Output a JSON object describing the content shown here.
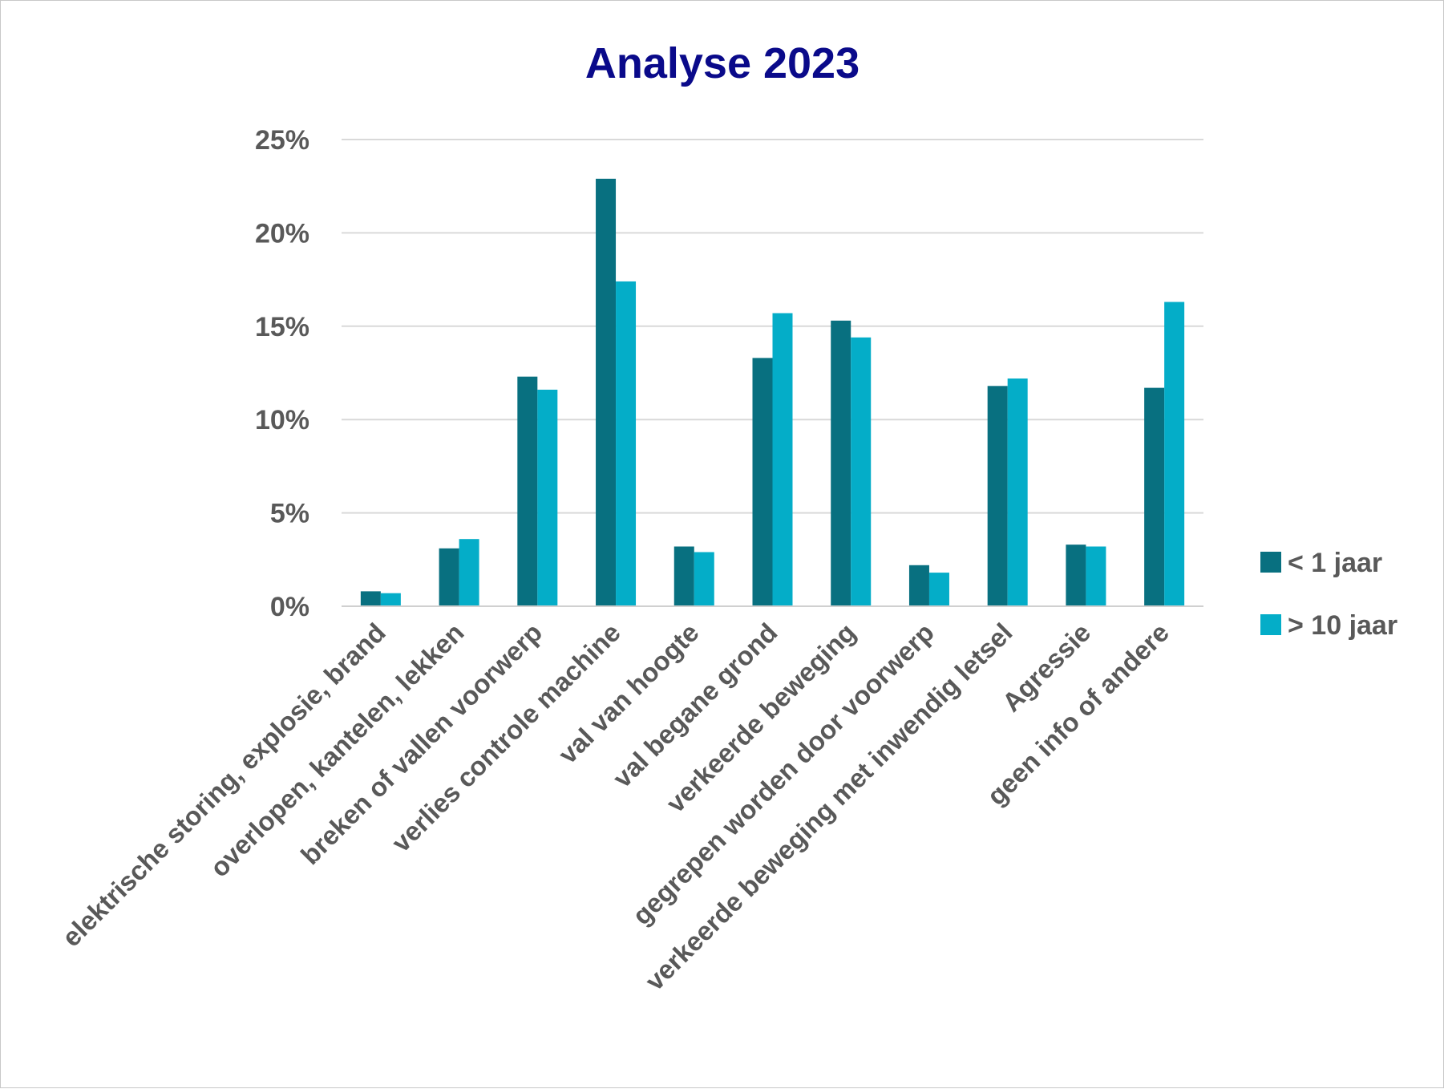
{
  "chart_data": {
    "type": "bar",
    "title": "Analyse 2023",
    "xlabel": "",
    "ylabel": "",
    "ylim": [
      0,
      25
    ],
    "y_ticks": [
      "0%",
      "5%",
      "10%",
      "15%",
      "20%",
      "25%"
    ],
    "y_tick_values": [
      0,
      5,
      10,
      15,
      20,
      25
    ],
    "grid": true,
    "legend_position": "right",
    "categories": [
      "elektrische storing, explosie, brand",
      "overlopen, kantelen, lekken",
      "breken of vallen voorwerp",
      "verlies controle machine",
      "val van hoogte",
      "val begane grond",
      "verkeerde beweging",
      "gegrepen worden door voorwerp",
      "verkeerde beweging met inwendig letsel",
      "Agressie",
      "geen info of andere"
    ],
    "series": [
      {
        "name": "< 1 jaar",
        "color": "#087080",
        "values": [
          0.8,
          3.1,
          12.3,
          22.9,
          3.2,
          13.3,
          15.3,
          2.2,
          11.8,
          3.3,
          11.7
        ]
      },
      {
        "name": "> 10 jaar",
        "color": "#04adc8",
        "values": [
          0.7,
          3.6,
          11.6,
          17.4,
          2.9,
          15.7,
          14.4,
          1.8,
          12.2,
          3.2,
          16.3
        ]
      }
    ]
  }
}
